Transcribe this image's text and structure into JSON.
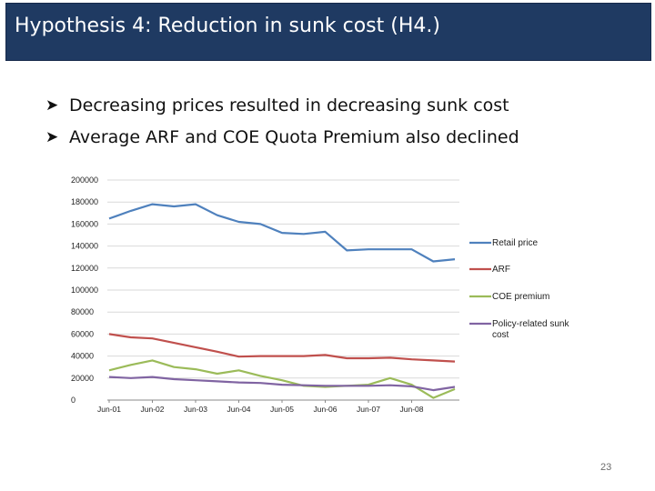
{
  "slide": {
    "title": "Hypothesis 4: Reduction in sunk cost (H4.)",
    "bullets": [
      "Decreasing prices resulted in decreasing sunk cost",
      "Average ARF and COE Quota Premium also declined"
    ],
    "bullet_icon": "arrow-bullet-icon",
    "page_number": "23",
    "title_bar_color": "#1f3a62"
  },
  "chart_data": {
    "type": "line",
    "title": "",
    "xlabel": "",
    "ylabel": "",
    "ylim": [
      0,
      200000
    ],
    "yticks": [
      "0",
      "20000",
      "40000",
      "60000",
      "80000",
      "100000",
      "120000",
      "140000",
      "160000",
      "180000",
      "200000"
    ],
    "xticks": [
      "Jun-01",
      "Jun-02",
      "Jun-03",
      "Jun-04",
      "Jun-05",
      "Jun-06",
      "Jun-07",
      "Jun-08"
    ],
    "grid": "horizontal",
    "legend_position": "right",
    "x": [
      "Jun-01",
      "Dec-01",
      "Jun-02",
      "Dec-02",
      "Jun-03",
      "Dec-03",
      "Jun-04",
      "Dec-04",
      "Jun-05",
      "Dec-05",
      "Jun-06",
      "Dec-06",
      "Jun-07",
      "Dec-07",
      "Jun-08",
      "Dec-08",
      "Mar-09"
    ],
    "series": [
      {
        "name": "Retail price",
        "color": "#4f81bd",
        "values": [
          165000,
          172000,
          178000,
          176000,
          178000,
          168000,
          162000,
          160000,
          152000,
          151000,
          153000,
          136000,
          137000,
          137000,
          137000,
          126000,
          128000
        ]
      },
      {
        "name": "ARF",
        "color": "#c0504d",
        "values": [
          60000,
          57000,
          56000,
          52000,
          48000,
          44000,
          39500,
          40000,
          40000,
          40000,
          41000,
          38000,
          38000,
          38500,
          37000,
          36000,
          35000
        ]
      },
      {
        "name": "COE premium",
        "color": "#9bbb59",
        "values": [
          27000,
          32000,
          36000,
          30000,
          28000,
          24000,
          27000,
          22000,
          18000,
          13000,
          12000,
          13000,
          14000,
          20000,
          14000,
          2000,
          10000
        ]
      },
      {
        "name": "Policy-related sunk cost",
        "color": "#8064a2",
        "values": [
          21000,
          20000,
          21000,
          19000,
          18000,
          17000,
          16000,
          15500,
          14000,
          13500,
          13000,
          13000,
          13000,
          13500,
          12500,
          9000,
          12000
        ]
      }
    ]
  }
}
